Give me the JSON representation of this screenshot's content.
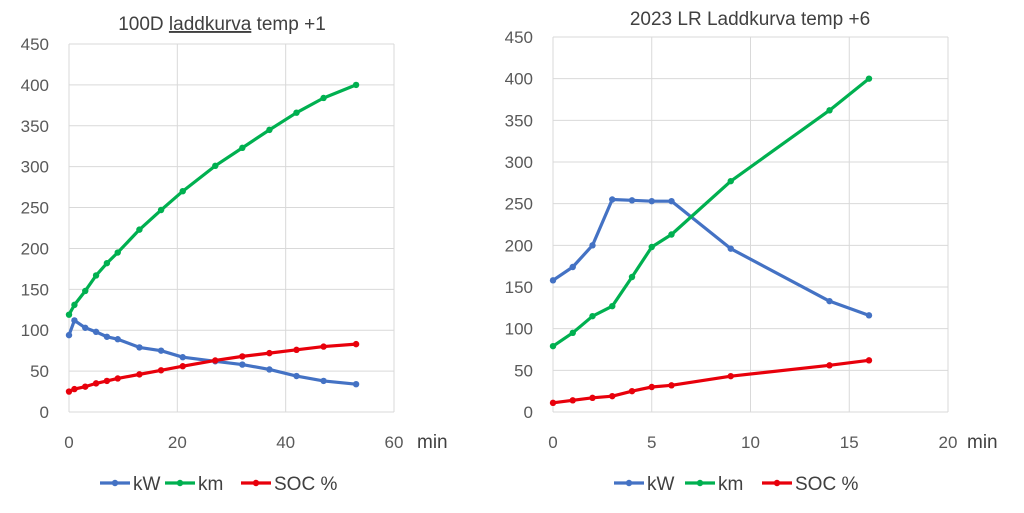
{
  "chart_data": [
    {
      "type": "line",
      "title": "100D laddkurva temp +1",
      "title_underlined_word": "laddkurva",
      "xlabel": "min",
      "ylabel": "",
      "xlim": [
        0,
        60
      ],
      "ylim": [
        0,
        450
      ],
      "xticks": [
        0,
        20,
        40,
        60
      ],
      "yticks": [
        0,
        50,
        100,
        150,
        200,
        250,
        300,
        350,
        400,
        450
      ],
      "grid": true,
      "legend": "bottom",
      "series": [
        {
          "name": "kW",
          "color": "#4472C4",
          "points": [
            [
              0,
              94
            ],
            [
              1,
              112
            ],
            [
              3,
              103
            ],
            [
              5,
              98
            ],
            [
              7,
              92
            ],
            [
              9,
              89
            ],
            [
              13,
              79
            ],
            [
              17,
              75
            ],
            [
              21,
              67
            ],
            [
              27,
              62
            ],
            [
              32,
              58
            ],
            [
              37,
              52
            ],
            [
              42,
              44
            ],
            [
              47,
              38
            ],
            [
              53,
              34
            ]
          ]
        },
        {
          "name": "km",
          "color": "#00B050",
          "points": [
            [
              0,
              119
            ],
            [
              1,
              131
            ],
            [
              3,
              148
            ],
            [
              5,
              167
            ],
            [
              7,
              182
            ],
            [
              9,
              195
            ],
            [
              13,
              223
            ],
            [
              17,
              247
            ],
            [
              21,
              270
            ],
            [
              27,
              301
            ],
            [
              32,
              323
            ],
            [
              37,
              345
            ],
            [
              42,
              366
            ],
            [
              47,
              384
            ],
            [
              53,
              400
            ]
          ]
        },
        {
          "name": "SOC %",
          "color": "#E8000B",
          "points": [
            [
              0,
              25
            ],
            [
              1,
              28
            ],
            [
              3,
              31
            ],
            [
              5,
              35
            ],
            [
              7,
              38
            ],
            [
              9,
              41
            ],
            [
              13,
              46
            ],
            [
              17,
              51
            ],
            [
              21,
              56
            ],
            [
              27,
              63
            ],
            [
              32,
              68
            ],
            [
              37,
              72
            ],
            [
              42,
              76
            ],
            [
              47,
              80
            ],
            [
              53,
              83
            ]
          ]
        }
      ]
    },
    {
      "type": "line",
      "title": "2023 LR Laddkurva temp +6",
      "xlabel": "min",
      "ylabel": "",
      "xlim": [
        0,
        20
      ],
      "ylim": [
        0,
        450
      ],
      "xticks": [
        0,
        5,
        10,
        15,
        20
      ],
      "yticks": [
        0,
        50,
        100,
        150,
        200,
        250,
        300,
        350,
        400,
        450
      ],
      "grid": true,
      "legend": "bottom",
      "series": [
        {
          "name": "kW",
          "color": "#4472C4",
          "points": [
            [
              0,
              158
            ],
            [
              1,
              174
            ],
            [
              2,
              200
            ],
            [
              3,
              255
            ],
            [
              4,
              254
            ],
            [
              5,
              253
            ],
            [
              6,
              253
            ],
            [
              9,
              196
            ],
            [
              14,
              133
            ],
            [
              16,
              116
            ]
          ]
        },
        {
          "name": "km",
          "color": "#00B050",
          "points": [
            [
              0,
              79
            ],
            [
              1,
              95
            ],
            [
              2,
              115
            ],
            [
              3,
              127
            ],
            [
              4,
              162
            ],
            [
              5,
              198
            ],
            [
              6,
              213
            ],
            [
              9,
              277
            ],
            [
              14,
              362
            ],
            [
              16,
              400
            ]
          ]
        },
        {
          "name": "SOC %",
          "color": "#E8000B",
          "points": [
            [
              0,
              11
            ],
            [
              1,
              14
            ],
            [
              2,
              17
            ],
            [
              3,
              19
            ],
            [
              4,
              25
            ],
            [
              5,
              30
            ],
            [
              6,
              32
            ],
            [
              9,
              43
            ],
            [
              14,
              56
            ],
            [
              16,
              62
            ]
          ]
        }
      ]
    }
  ]
}
